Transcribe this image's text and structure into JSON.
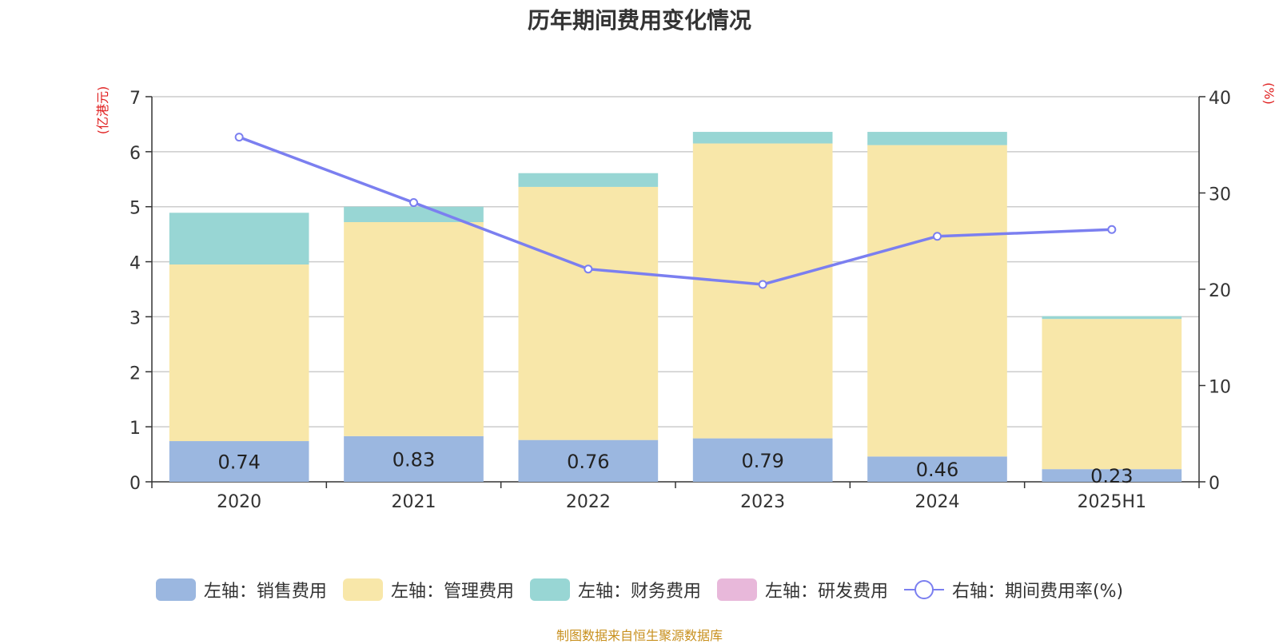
{
  "title": "历年期间费用变化情况",
  "source_note": "制图数据来自恒生聚源数据库",
  "chart_data": {
    "type": "bar",
    "stacked": true,
    "title": "历年期间费用变化情况",
    "categories": [
      "2020",
      "2021",
      "2022",
      "2023",
      "2024",
      "2025H1"
    ],
    "left_axis": {
      "label": "(亿港元)",
      "ylim": [
        0,
        7
      ],
      "ticks": [
        "0",
        "1",
        "2",
        "3",
        "4",
        "5",
        "6",
        "7"
      ]
    },
    "right_axis": {
      "label": "(%)",
      "ylim": [
        0,
        40
      ],
      "ticks": [
        "0",
        "10",
        "20",
        "30",
        "40"
      ]
    },
    "grid": true,
    "series": [
      {
        "name": "左轴：销售费用",
        "axis": "left",
        "kind": "bar",
        "color": "#9bb7e0",
        "values": [
          0.74,
          0.83,
          0.76,
          0.79,
          0.46,
          0.23
        ],
        "labels": [
          "0.74",
          "0.83",
          "0.76",
          "0.79",
          "0.46",
          "0.23"
        ]
      },
      {
        "name": "左轴：管理费用",
        "axis": "left",
        "kind": "bar",
        "color": "#f8e7a9",
        "values": [
          3.21,
          3.89,
          4.6,
          5.36,
          5.66,
          2.73
        ]
      },
      {
        "name": "左轴：财务费用",
        "axis": "left",
        "kind": "bar",
        "color": "#98d6d4",
        "values": [
          0.94,
          0.28,
          0.25,
          0.21,
          0.24,
          0.05
        ]
      },
      {
        "name": "左轴：研发费用",
        "axis": "left",
        "kind": "bar",
        "color": "#e8b8da",
        "values": [
          0,
          0,
          0,
          0,
          0,
          0
        ]
      },
      {
        "name": "右轴：期间费用率(%)",
        "axis": "right",
        "kind": "line",
        "color": "#7b7ff0",
        "values": [
          35.8,
          29.0,
          22.1,
          20.5,
          25.5,
          26.2
        ]
      }
    ],
    "legend_position": "bottom"
  }
}
